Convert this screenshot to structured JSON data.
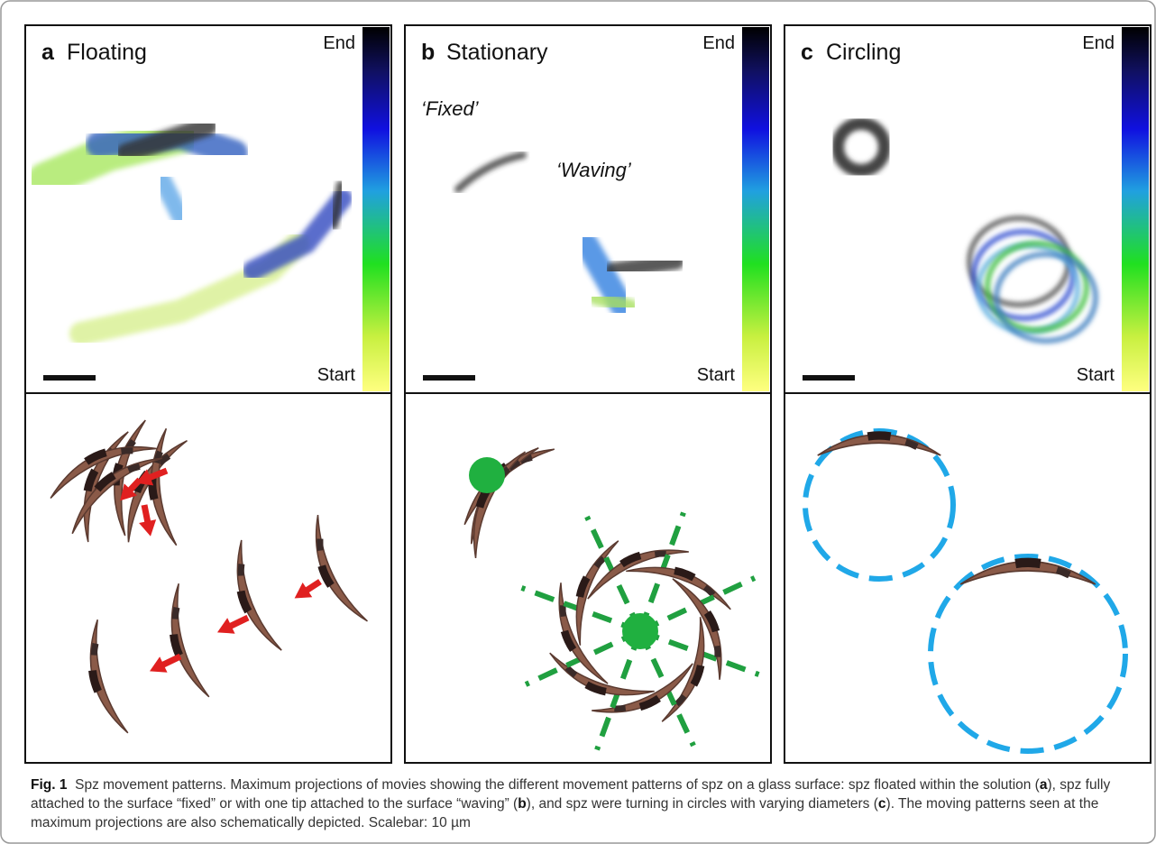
{
  "panels": [
    {
      "letter": "a",
      "title": "Floating",
      "end_label": "End",
      "start_label": "Start"
    },
    {
      "letter": "b",
      "title": "Stationary",
      "end_label": "End",
      "start_label": "Start",
      "annotations": [
        "‘Fixed’",
        "‘Waving’"
      ]
    },
    {
      "letter": "c",
      "title": "Circling",
      "end_label": "End",
      "start_label": "Start"
    }
  ],
  "caption": {
    "label": "Fig. 1",
    "segments": [
      {
        "text": "Spz movement patterns. Maximum projections of movies showing the different movement patterns of spz on a glass surface: spz floated within the solution (",
        "bold": false
      },
      {
        "text": "a",
        "bold": true
      },
      {
        "text": "), spz fully attached to the surface “fixed” or with one tip attached to the surface “waving” (",
        "bold": false
      },
      {
        "text": "b",
        "bold": true
      },
      {
        "text": "), and spz were turning in circles with varying diameters (",
        "bold": false
      },
      {
        "text": "c",
        "bold": true
      },
      {
        "text": "). The moving patterns seen at the maximum projections are also schematically depicted. Scalebar: 10 µm",
        "bold": false
      }
    ]
  }
}
